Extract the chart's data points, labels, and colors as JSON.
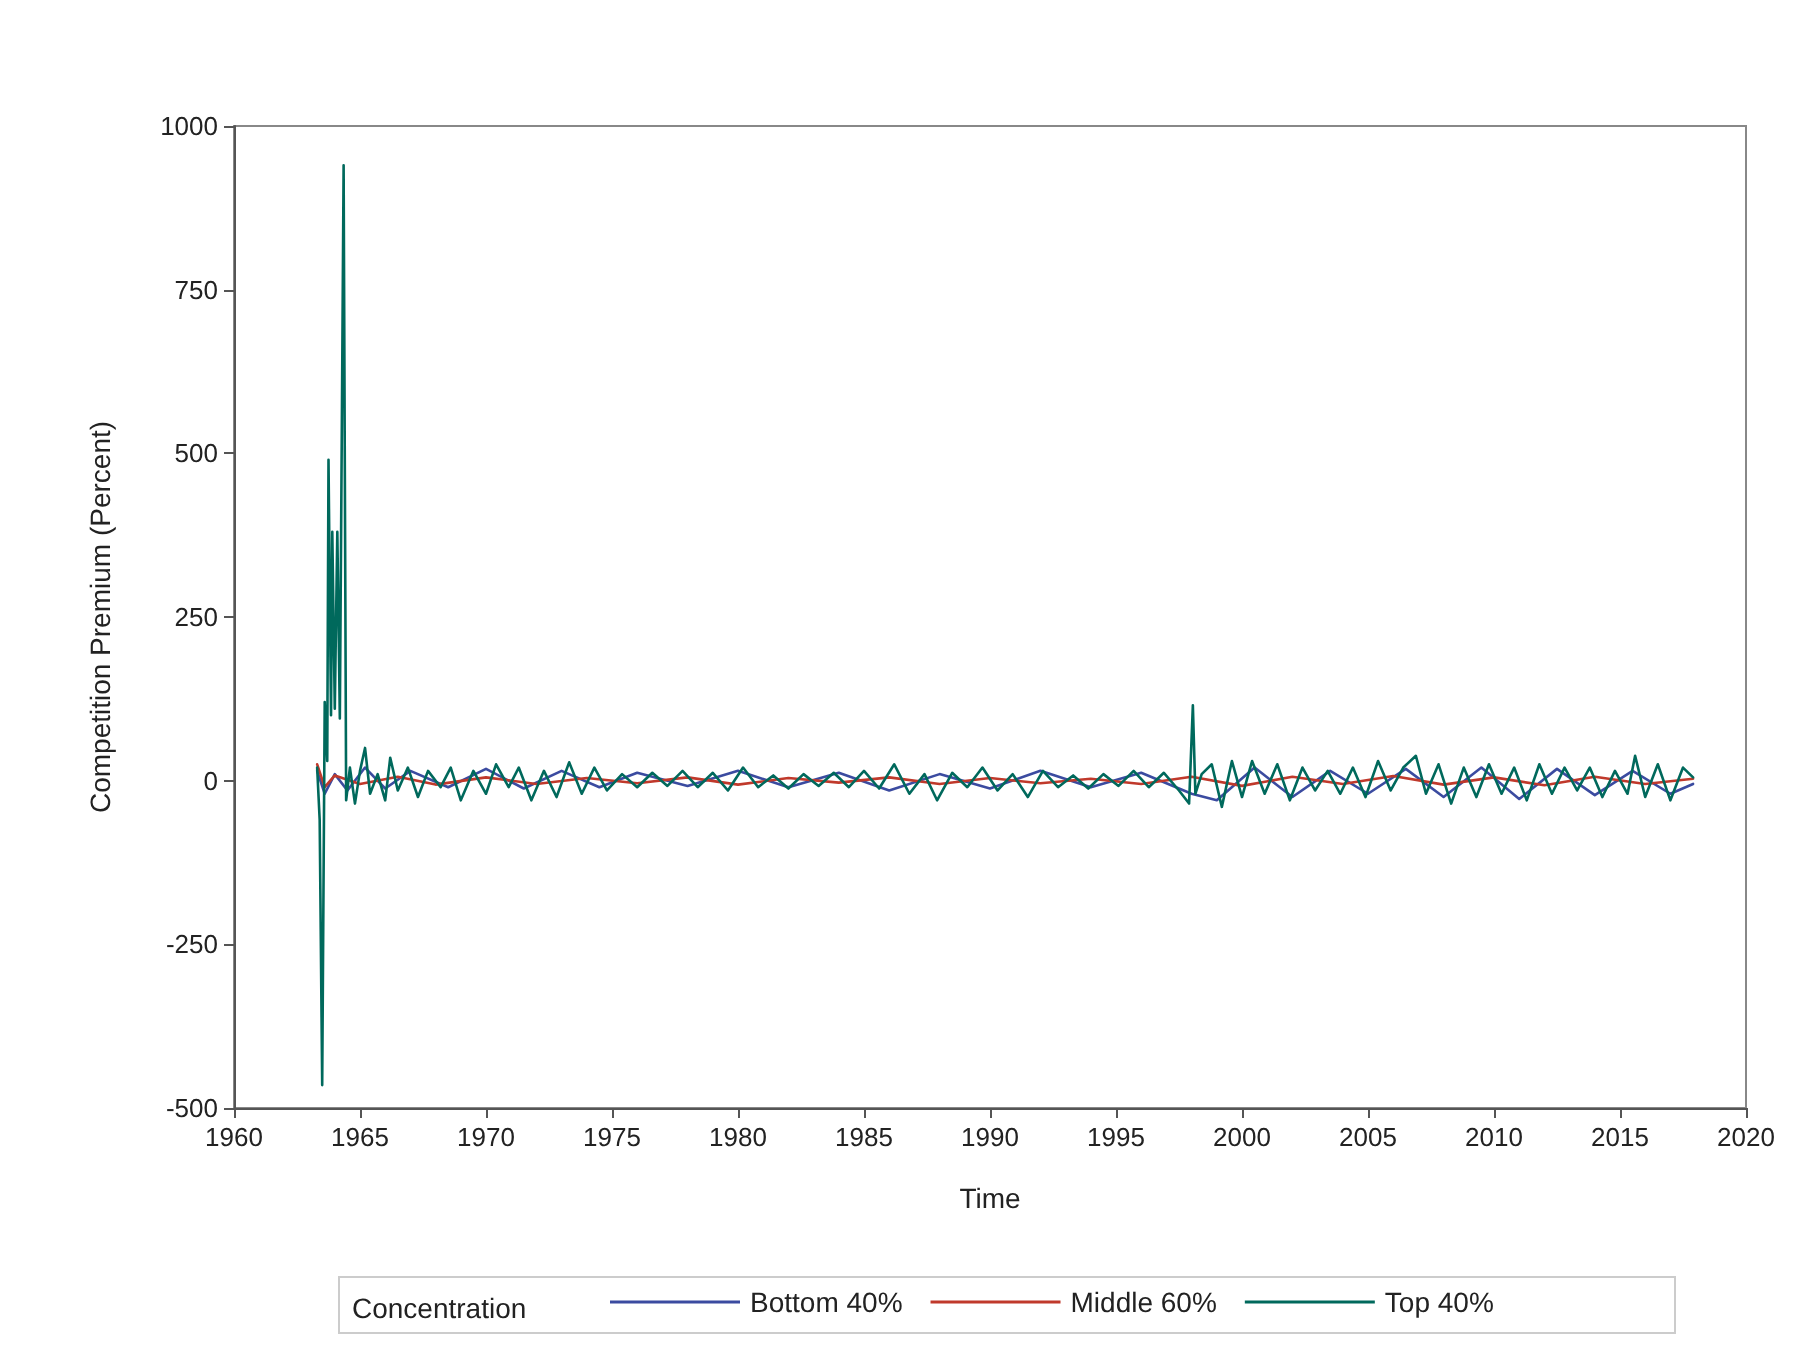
{
  "chart_data": {
    "type": "line",
    "xlabel": "Time",
    "ylabel": "Competition Premium (Percent)",
    "legend_title": "Concentration",
    "legend": "bottom",
    "marker": "none",
    "line_style": "solid",
    "grid": false,
    "xlim": [
      1960,
      2020
    ],
    "xticks": [
      1960,
      1965,
      1970,
      1975,
      1980,
      1985,
      1990,
      1995,
      2000,
      2005,
      2010,
      2015,
      2020
    ],
    "ylim": [
      -500,
      1000
    ],
    "yticks": [
      -500,
      -250,
      0,
      250,
      500,
      750,
      1000
    ],
    "series": [
      {
        "name": "Bottom 40%",
        "color": "#3b4ba0",
        "x": [
          1963.3,
          1963.6,
          1964.0,
          1964.5,
          1965.2,
          1966.0,
          1967.0,
          1968.5,
          1970.0,
          1971.5,
          1973.0,
          1974.5,
          1976.0,
          1978.0,
          1980.0,
          1982.0,
          1984.0,
          1986.0,
          1988.0,
          1990.0,
          1992.0,
          1994.0,
          1996.0,
          1998.0,
          1999.0,
          2000.5,
          2002.0,
          2003.5,
          2005.0,
          2006.5,
          2008.0,
          2009.5,
          2011.0,
          2012.5,
          2014.0,
          2015.5,
          2017.0,
          2017.9
        ],
        "values": [
          15,
          -20,
          10,
          -15,
          20,
          -12,
          15,
          -10,
          18,
          -12,
          15,
          -10,
          12,
          -8,
          15,
          -10,
          12,
          -15,
          10,
          -12,
          15,
          -10,
          12,
          -20,
          -30,
          20,
          -25,
          15,
          -20,
          18,
          -25,
          20,
          -28,
          18,
          -22,
          15,
          -20,
          -5
        ]
      },
      {
        "name": "Middle 60%",
        "color": "#c0392b",
        "x": [
          1963.3,
          1963.6,
          1964.0,
          1965.0,
          1966.5,
          1968.0,
          1970.0,
          1972.0,
          1974.0,
          1976.0,
          1978.0,
          1980.0,
          1982.0,
          1984.0,
          1986.0,
          1988.0,
          1990.0,
          1992.0,
          1994.0,
          1996.0,
          1998.0,
          2000.0,
          2002.0,
          2004.0,
          2006.0,
          2008.0,
          2010.0,
          2012.0,
          2014.0,
          2016.0,
          2017.9
        ],
        "values": [
          25,
          -10,
          8,
          -5,
          6,
          -6,
          5,
          -5,
          4,
          -4,
          5,
          -6,
          4,
          -3,
          5,
          -5,
          4,
          -4,
          3,
          -5,
          6,
          -8,
          6,
          -5,
          7,
          -6,
          5,
          -7,
          6,
          -5,
          3
        ]
      },
      {
        "name": "Top 40%",
        "color": "#00695c",
        "x": [
          1963.3,
          1963.4,
          1963.5,
          1963.6,
          1963.7,
          1963.75,
          1963.85,
          1963.9,
          1964.0,
          1964.1,
          1964.2,
          1964.35,
          1964.45,
          1964.6,
          1964.8,
          1965.0,
          1965.2,
          1965.4,
          1965.7,
          1966.0,
          1966.2,
          1966.5,
          1966.9,
          1967.3,
          1967.7,
          1968.2,
          1968.6,
          1969.0,
          1969.5,
          1970.0,
          1970.4,
          1970.9,
          1971.3,
          1971.8,
          1972.3,
          1972.8,
          1973.3,
          1973.8,
          1974.3,
          1974.8,
          1975.4,
          1976.0,
          1976.6,
          1977.2,
          1977.8,
          1978.4,
          1979.0,
          1979.6,
          1980.2,
          1980.8,
          1981.4,
          1982.0,
          1982.6,
          1983.2,
          1983.8,
          1984.4,
          1985.0,
          1985.6,
          1986.2,
          1986.8,
          1987.4,
          1987.9,
          1988.5,
          1989.1,
          1989.7,
          1990.3,
          1990.9,
          1991.5,
          1992.1,
          1992.7,
          1993.3,
          1993.9,
          1994.5,
          1995.1,
          1995.7,
          1996.3,
          1996.9,
          1997.5,
          1997.9,
          1998.05,
          1998.15,
          1998.4,
          1998.8,
          1999.2,
          1999.6,
          2000.0,
          2000.4,
          2000.9,
          2001.4,
          2001.9,
          2002.4,
          2002.9,
          2003.4,
          2003.9,
          2004.4,
          2004.9,
          2005.4,
          2005.9,
          2006.4,
          2006.9,
          2007.3,
          2007.8,
          2008.3,
          2008.8,
          2009.3,
          2009.8,
          2010.3,
          2010.8,
          2011.3,
          2011.8,
          2012.3,
          2012.8,
          2013.3,
          2013.8,
          2014.3,
          2014.8,
          2015.3,
          2015.6,
          2016.0,
          2016.5,
          2017.0,
          2017.5,
          2017.9
        ],
        "values": [
          20,
          -60,
          -465,
          120,
          30,
          490,
          100,
          380,
          110,
          380,
          95,
          940,
          -30,
          20,
          -35,
          15,
          50,
          -20,
          10,
          -30,
          35,
          -15,
          20,
          -25,
          15,
          -10,
          20,
          -30,
          15,
          -20,
          25,
          -10,
          20,
          -30,
          15,
          -25,
          28,
          -20,
          20,
          -15,
          10,
          -10,
          12,
          -8,
          15,
          -10,
          12,
          -15,
          20,
          -10,
          8,
          -12,
          10,
          -8,
          12,
          -10,
          15,
          -12,
          25,
          -20,
          10,
          -30,
          12,
          -10,
          20,
          -15,
          10,
          -25,
          15,
          -10,
          8,
          -12,
          10,
          -8,
          15,
          -10,
          12,
          -15,
          -35,
          115,
          -20,
          10,
          25,
          -40,
          30,
          -25,
          30,
          -20,
          25,
          -30,
          20,
          -15,
          15,
          -20,
          20,
          -25,
          30,
          -15,
          20,
          38,
          -20,
          25,
          -35,
          20,
          -25,
          25,
          -20,
          20,
          -30,
          25,
          -20,
          20,
          -15,
          20,
          -25,
          15,
          -20,
          38,
          -25,
          25,
          -30,
          20,
          5
        ]
      }
    ]
  }
}
